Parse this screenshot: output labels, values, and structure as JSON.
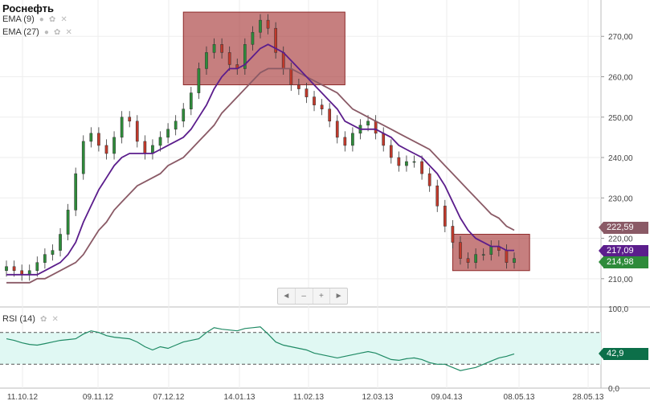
{
  "ticker": "Роснефть",
  "indicators": {
    "ema_fast": "EMA (9)",
    "ema_slow": "EMA (27)",
    "rsi": "RSI (14)"
  },
  "navigator": {
    "left": "◄",
    "minus": "–",
    "plus": "+",
    "right": "►"
  },
  "colors": {
    "up": "#2e8b3a",
    "down": "#c0392b",
    "ema_fast": "#5b1d8c",
    "ema_slow": "#8a5a66",
    "rsi_line": "#1f8a64",
    "zone": "#a83a3a",
    "rsi_band": "#e0f8f3"
  },
  "chart_data": {
    "type": "candlestick",
    "title": "Роснефть",
    "x_tick_labels": [
      "11.10.12",
      "09.11.12",
      "07.12.12",
      "14.01.13",
      "11.02.13",
      "12.03.13",
      "09.04.13",
      "08.05.13",
      "28.05.13"
    ],
    "price_axis": {
      "ylim": [
        203,
        279
      ],
      "ticks": [
        210,
        220,
        230,
        240,
        250,
        260,
        270
      ]
    },
    "rsi_axis": {
      "ylim": [
        0,
        100
      ],
      "ticks": [
        0,
        100
      ],
      "bands": [
        30,
        70
      ]
    },
    "last_values": {
      "ema_slow": "222,59",
      "ema_fast": "217,09",
      "price": "214,98",
      "rsi": "42,9"
    },
    "price_series": [
      213,
      212,
      211,
      212,
      214,
      216,
      217,
      221,
      227,
      236,
      244,
      246,
      243,
      241,
      245,
      250,
      249,
      244,
      241,
      243,
      245,
      247,
      249,
      252,
      256,
      262,
      266,
      268,
      266,
      263,
      262,
      268,
      271,
      274,
      272,
      266,
      262,
      258,
      257,
      255,
      253,
      252,
      249,
      245,
      243,
      246,
      248,
      249,
      246,
      243,
      240,
      238,
      239,
      239,
      236,
      233,
      228,
      223,
      219,
      215,
      214,
      216,
      216,
      218,
      217,
      214,
      215
    ],
    "ema_fast": [
      211,
      211,
      211,
      211,
      211,
      212,
      213,
      214,
      216,
      219,
      224,
      228,
      232,
      235,
      238,
      240,
      241,
      241,
      241,
      241,
      242,
      243,
      244,
      245,
      247,
      250,
      253,
      257,
      260,
      262,
      262,
      263,
      265,
      267,
      268,
      267,
      266,
      264,
      262,
      260,
      258,
      256,
      254,
      252,
      249,
      248,
      247,
      247,
      247,
      246,
      245,
      243,
      242,
      241,
      240,
      238,
      236,
      233,
      229,
      225,
      222,
      220,
      219,
      218,
      218,
      217,
      217
    ],
    "ema_slow": [
      209,
      209,
      209,
      209,
      210,
      210,
      211,
      212,
      213,
      214,
      216,
      219,
      222,
      224,
      227,
      229,
      231,
      233,
      234,
      235,
      236,
      238,
      239,
      240,
      242,
      244,
      246,
      248,
      251,
      253,
      255,
      257,
      259,
      261,
      262,
      262,
      262,
      262,
      261,
      260,
      259,
      258,
      257,
      256,
      254,
      252,
      251,
      250,
      249,
      248,
      247,
      246,
      245,
      244,
      243,
      242,
      240,
      238,
      236,
      234,
      232,
      230,
      228,
      226,
      225,
      223,
      222
    ],
    "rsi_series": [
      62,
      60,
      57,
      55,
      54,
      56,
      58,
      60,
      61,
      62,
      68,
      72,
      70,
      66,
      64,
      63,
      62,
      58,
      52,
      48,
      52,
      50,
      54,
      58,
      60,
      62,
      70,
      76,
      74,
      73,
      72,
      75,
      76,
      77,
      68,
      58,
      54,
      52,
      50,
      48,
      44,
      42,
      40,
      38,
      40,
      42,
      44,
      46,
      44,
      40,
      36,
      35,
      37,
      38,
      36,
      32,
      30,
      30,
      26,
      22,
      24,
      26,
      30,
      34,
      38,
      40,
      43
    ],
    "zones": [
      {
        "x0_idx": 23,
        "x1_idx": 44,
        "y0": 258,
        "y1": 276
      },
      {
        "x0_idx": 58,
        "x1_idx": 68,
        "y0": 212,
        "y1": 221
      }
    ]
  }
}
